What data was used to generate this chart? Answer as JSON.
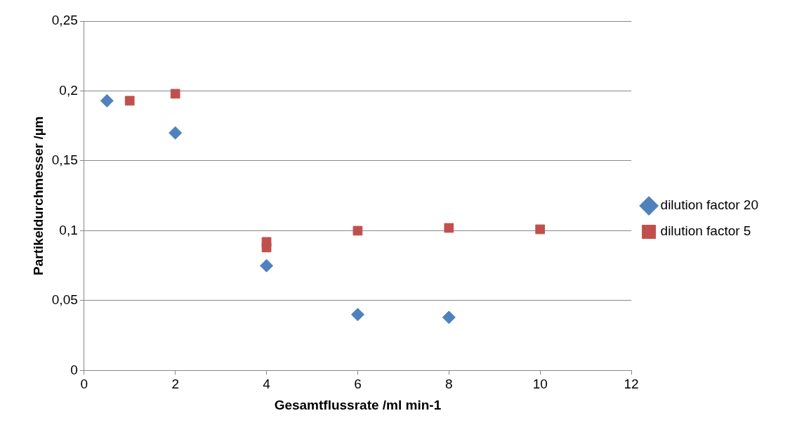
{
  "chart_data": {
    "type": "scatter",
    "xlabel": "Gesamtflussrate /ml min-1",
    "ylabel": "Partikeldurchmesser /µm",
    "series": [
      {
        "name": "dilution factor 20",
        "color": "#4f81bd",
        "marker": "diamond",
        "x": [
          0.5,
          2,
          4,
          6,
          8
        ],
        "values": [
          0.193,
          0.17,
          0.075,
          0.04,
          0.038
        ]
      },
      {
        "name": "dilution factor 5",
        "color": "#c0504d",
        "marker": "square",
        "x": [
          1,
          2,
          4,
          4,
          6,
          8,
          10
        ],
        "values": [
          0.193,
          0.198,
          0.092,
          0.088,
          0.1,
          0.102,
          0.101
        ]
      }
    ],
    "xlim": [
      0,
      12
    ],
    "xticks": [
      0,
      2,
      4,
      6,
      8,
      10,
      12
    ],
    "ylim": [
      0,
      0.25
    ],
    "yticks": [
      {
        "value": 0,
        "label": "0"
      },
      {
        "value": 0.05,
        "label": "0,05"
      },
      {
        "value": 0.1,
        "label": "0,1"
      },
      {
        "value": 0.15,
        "label": "0,15"
      },
      {
        "value": 0.2,
        "label": "0,2"
      },
      {
        "value": 0.25,
        "label": "0,25"
      }
    ],
    "grid": "y",
    "legend": "right"
  }
}
